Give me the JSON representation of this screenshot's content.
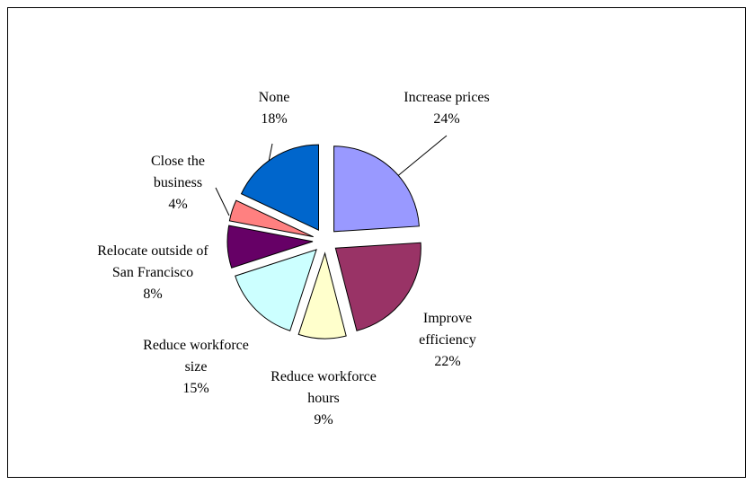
{
  "chart_data": {
    "type": "pie",
    "categories": [
      "Increase prices",
      "Improve efficiency",
      "Reduce workforce hours",
      "Reduce workforce size",
      "Relocate outside of San Francisco",
      "Close the business",
      "None"
    ],
    "values": [
      24,
      22,
      9,
      15,
      8,
      4,
      18
    ],
    "value_labels": [
      "24%",
      "22%",
      "9%",
      "15%",
      "8%",
      "4%",
      "18%"
    ],
    "colors": [
      "#9999ff",
      "#993366",
      "#ffffcc",
      "#ccffff",
      "#660066",
      "#ff8080",
      "#0066cc"
    ]
  }
}
